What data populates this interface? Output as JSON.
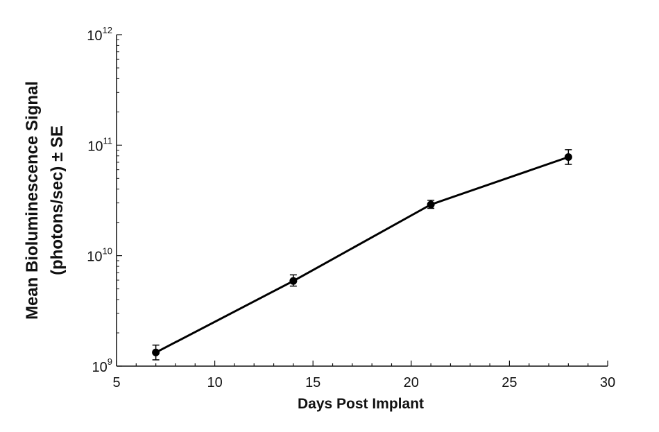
{
  "chart_data": {
    "type": "line",
    "xlabel": "Days Post Implant",
    "ylabel_line1": "Mean Bioluminescence Signal",
    "ylabel_line2": "(photons/sec) ± SE",
    "xlim": [
      5,
      30
    ],
    "x_ticks": [
      "5",
      "10",
      "15",
      "20",
      "25",
      "30"
    ],
    "yscale": "log",
    "ylim": [
      1000000000,
      1000000000000
    ],
    "y_ticks": [
      {
        "base": "10",
        "exp": "9"
      },
      {
        "base": "10",
        "exp": "10"
      },
      {
        "base": "10",
        "exp": "11"
      },
      {
        "base": "10",
        "exp": "12"
      }
    ],
    "grid": false,
    "line_color": "#000000",
    "x": [
      7,
      14,
      21,
      28
    ],
    "y": [
      1330000000,
      5900000000,
      29000000000,
      78000000000
    ],
    "y_err_low": [
      1140000000,
      5300000000,
      26800000000,
      67000000000
    ],
    "y_err_high": [
      1550000000,
      6700000000,
      31700000000,
      91000000000
    ]
  }
}
